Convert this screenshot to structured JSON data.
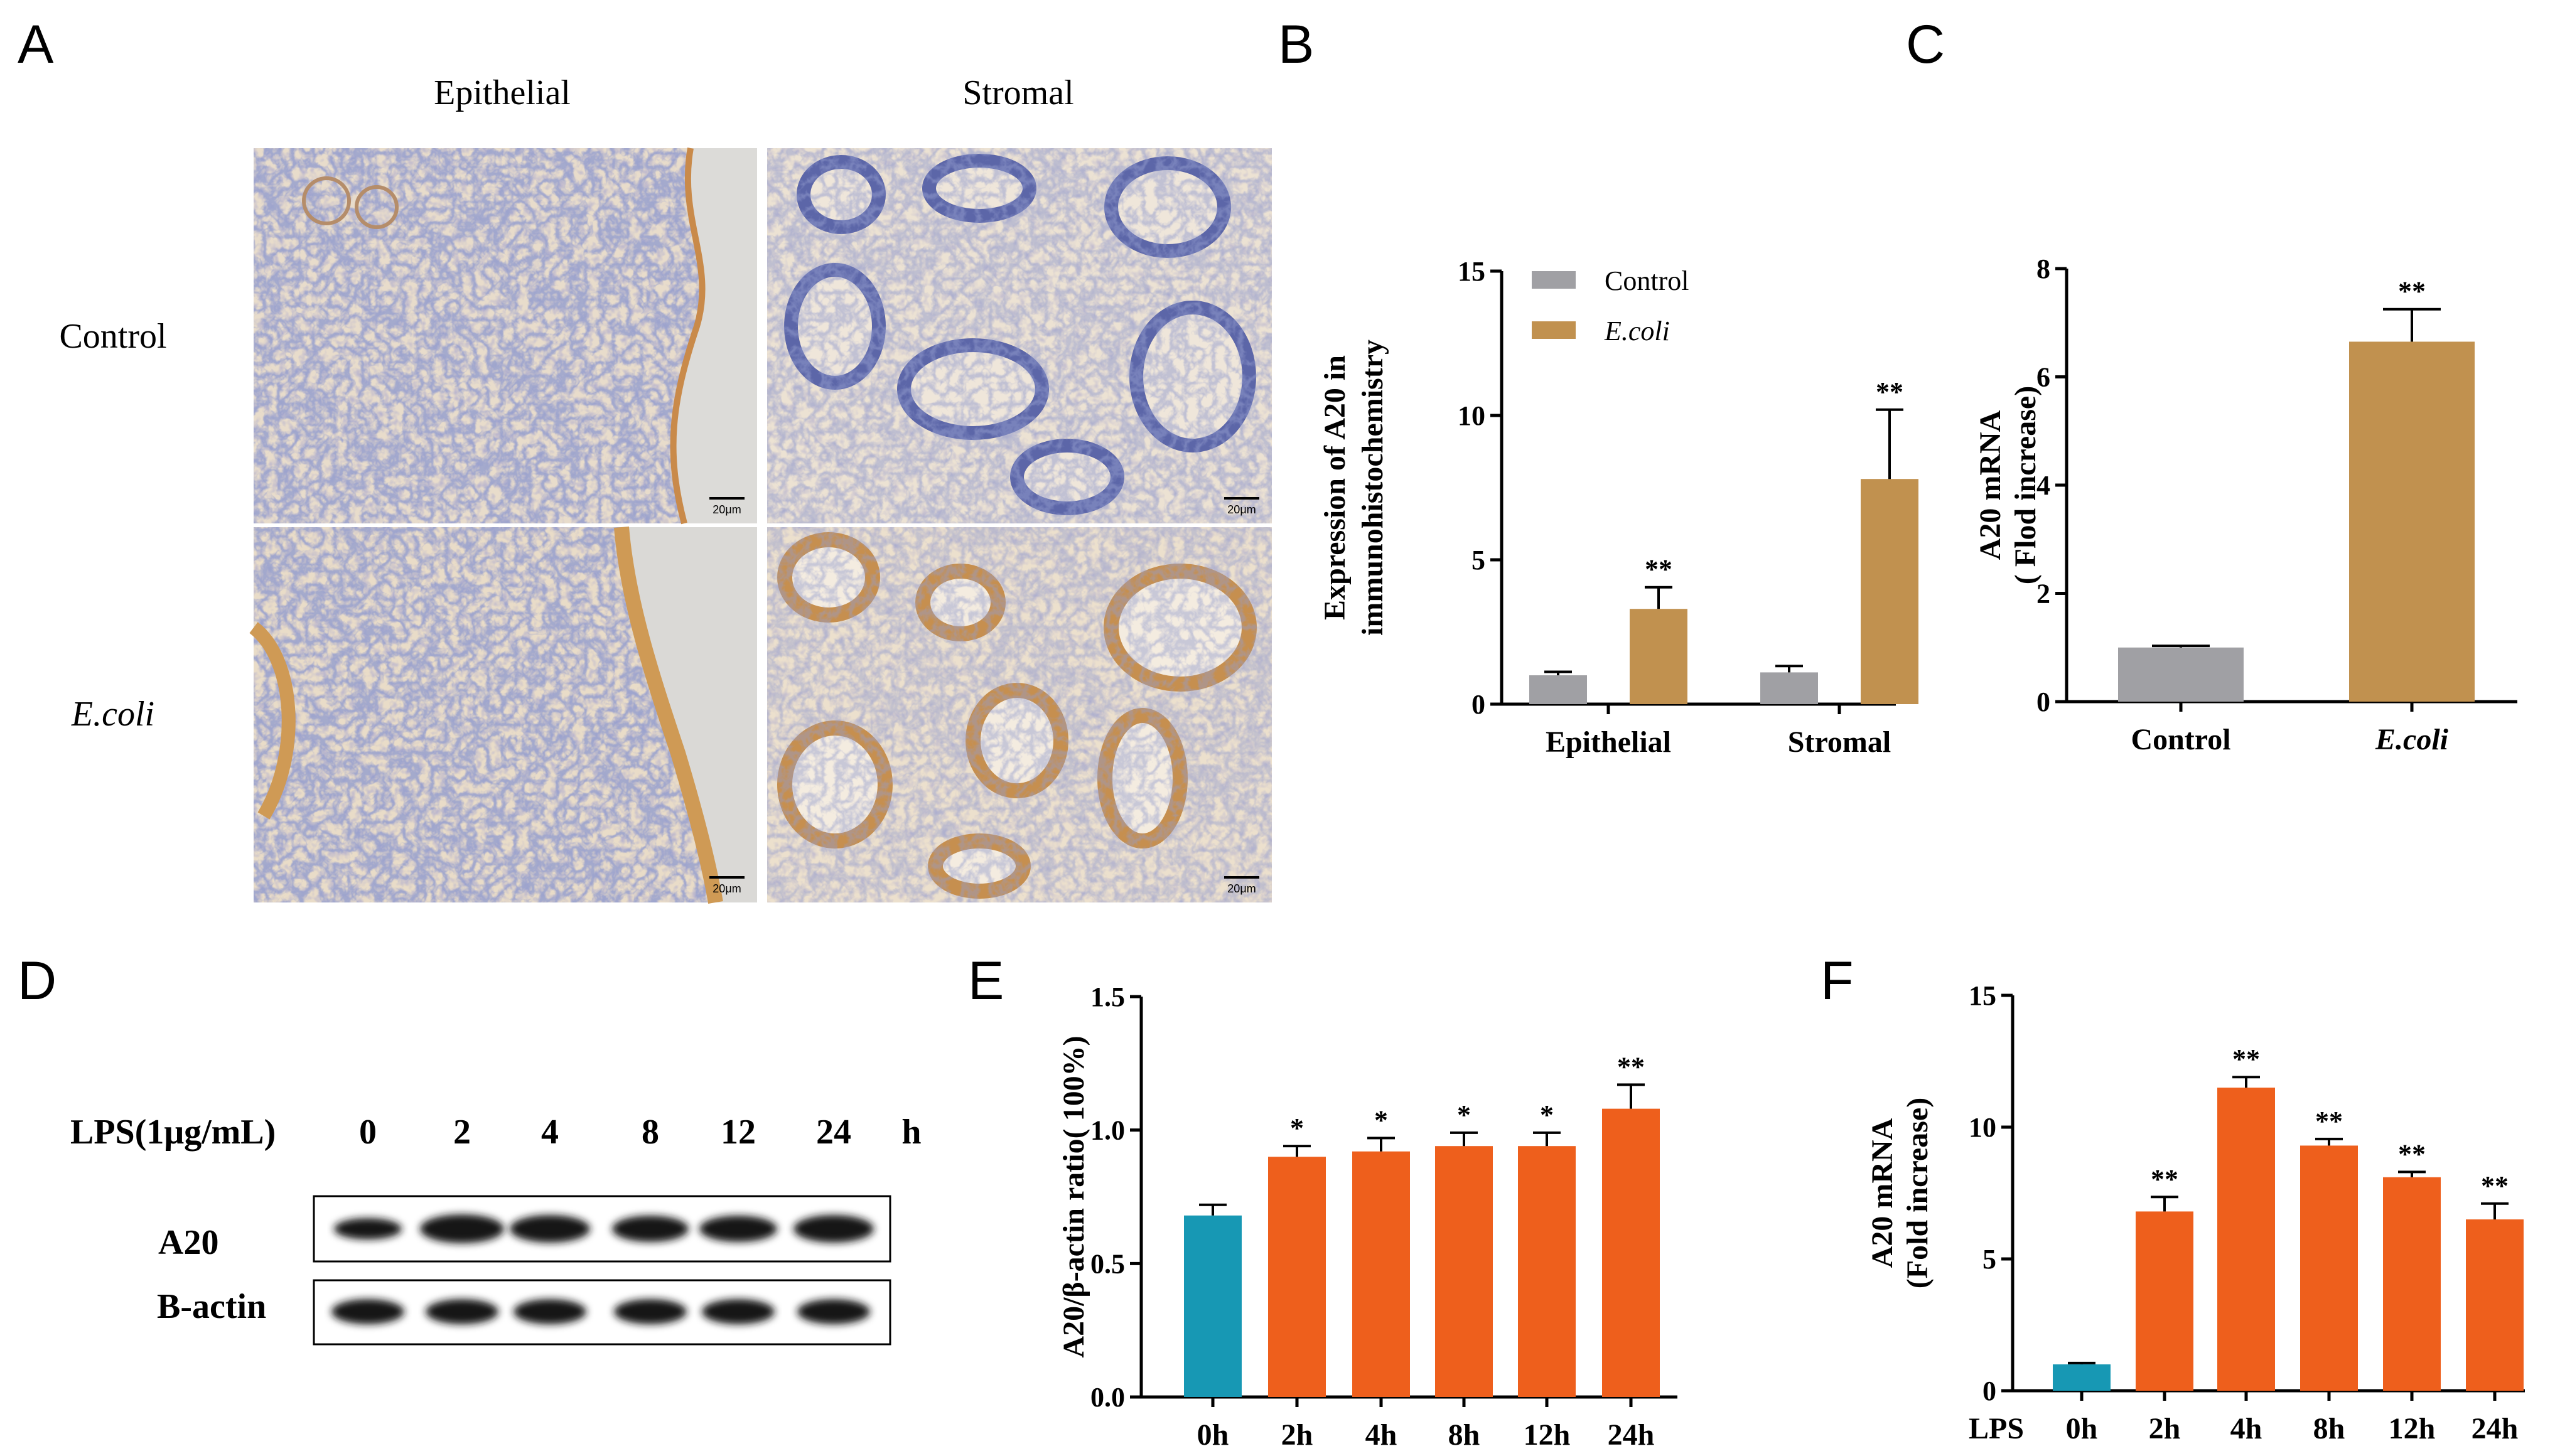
{
  "panel_labels": {
    "a": "A",
    "b": "B",
    "c": "C",
    "d": "D",
    "e": "E",
    "f": "F"
  },
  "panel_a": {
    "col_headers": [
      "Epithelial",
      "Stromal"
    ],
    "row_labels": [
      "Control",
      "E.coli"
    ],
    "scale_bar": "20μm"
  },
  "panel_d": {
    "treatment_label": "LPS(1μg/mL)",
    "timepoints": [
      "0",
      "2",
      "4",
      "8",
      "12",
      "24"
    ],
    "unit": "h",
    "bands": [
      "A20",
      "Β-actin"
    ]
  },
  "chart_data": [
    {
      "id": "B",
      "type": "bar",
      "categories": [
        "Epithelial",
        "Stromal"
      ],
      "series": [
        {
          "name": "Control",
          "values": [
            1.0,
            1.1
          ],
          "errors": [
            0.12,
            0.22
          ],
          "color": "#a0a0a4"
        },
        {
          "name": "E.coli",
          "values": [
            3.3,
            7.8
          ],
          "errors": [
            0.75,
            2.4
          ],
          "color": "#c1914f"
        }
      ],
      "annotations": [
        [
          "",
          ""
        ],
        [
          "**",
          "**"
        ]
      ],
      "ylabel": "Expression of A20 in immunohistochemistry",
      "ylim": [
        0,
        15
      ],
      "yticks": [
        0,
        5,
        10,
        15
      ],
      "legend": "top-left"
    },
    {
      "id": "C",
      "type": "bar",
      "categories": [
        "Control",
        "E.coli"
      ],
      "values": [
        1.0,
        6.65
      ],
      "errors": [
        0.03,
        0.6
      ],
      "colors": [
        "#a0a0a4",
        "#c1914f"
      ],
      "annotations": [
        "",
        "**"
      ],
      "ylabel_lines": [
        "A20 mRNA",
        "( Flod increase)"
      ],
      "ylim": [
        0,
        8
      ],
      "yticks": [
        0,
        2,
        4,
        6,
        8
      ]
    },
    {
      "id": "E",
      "type": "bar",
      "categories": [
        "0h",
        "2h",
        "4h",
        "8h",
        "12h",
        "24h"
      ],
      "values": [
        0.68,
        0.9,
        0.92,
        0.94,
        0.94,
        1.08
      ],
      "errors": [
        0.04,
        0.04,
        0.05,
        0.05,
        0.05,
        0.09
      ],
      "colors": [
        "#1798b4",
        "#ee5f1c",
        "#ee5f1c",
        "#ee5f1c",
        "#ee5f1c",
        "#ee5f1c"
      ],
      "annotations": [
        "",
        "*",
        "*",
        "*",
        "*",
        "**"
      ],
      "ylabel": "A20/β-actin ratio( 100%)",
      "ylim": [
        0,
        1.5
      ],
      "yticks": [
        "0.0",
        "0.5",
        "1.0",
        "1.5"
      ]
    },
    {
      "id": "F",
      "type": "bar",
      "categories": [
        "0h",
        "2h",
        "4h",
        "8h",
        "12h",
        "24h"
      ],
      "x_prefix": "LPS",
      "values": [
        1.0,
        6.8,
        11.5,
        9.3,
        8.1,
        6.5
      ],
      "errors": [
        0.05,
        0.55,
        0.4,
        0.25,
        0.2,
        0.6
      ],
      "colors": [
        "#1798b4",
        "#ee5f1c",
        "#ee5f1c",
        "#ee5f1c",
        "#ee5f1c",
        "#ee5f1c"
      ],
      "annotations": [
        "",
        "**",
        "**",
        "**",
        "**",
        "**"
      ],
      "ylabel_lines": [
        "A20 mRNA",
        "(Fold increase)"
      ],
      "ylim": [
        0,
        15
      ],
      "yticks": [
        0,
        5,
        10,
        15
      ]
    }
  ]
}
